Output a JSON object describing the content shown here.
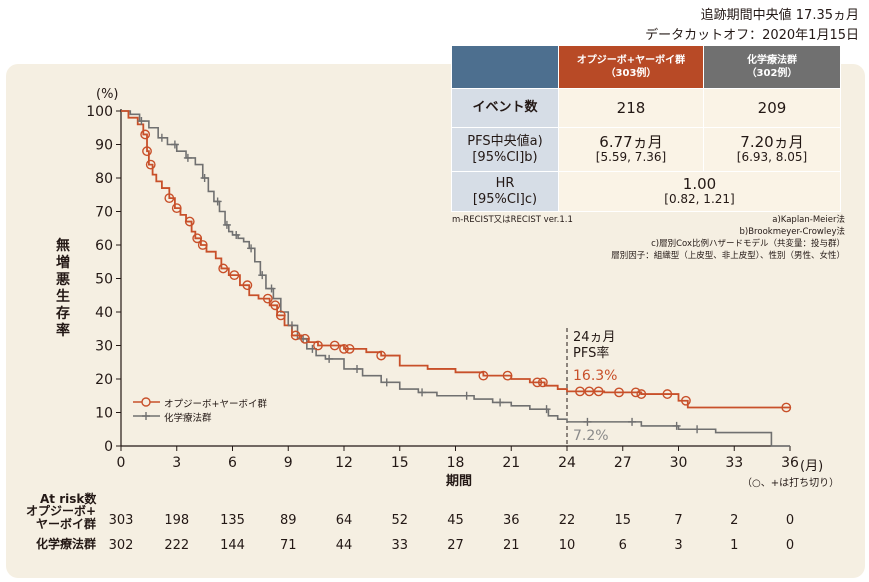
{
  "header": {
    "followup": "追跡期間中央値 17.35ヵ月",
    "cutoff": "データカットオフ：2020年1月15日"
  },
  "table": {
    "col_a": [
      "オプジーボ+ヤーボイ群",
      "（303例）"
    ],
    "col_b": [
      "化学療法群",
      "（302例）"
    ],
    "event_label": "イベント数",
    "event_a": "218",
    "event_b": "209",
    "pfs_label": [
      "PFS中央値a)",
      "[95%CI]b)"
    ],
    "pfs_a": "6.77ヵ月",
    "pfs_a_ci": "[5.59, 7.36]",
    "pfs_b": "7.20ヵ月",
    "pfs_b_ci": "[6.93, 8.05]",
    "hr_label": [
      "HR",
      "[95%CI]c)"
    ],
    "hr": "1.00",
    "hr_ci": "[0.82, 1.21]"
  },
  "footnotes": {
    "left": "m-RECIST又はRECIST ver.1.1",
    "a": "a)Kaplan-Meier法",
    "b": "b)Brookmeyer-Crowley法",
    "c": "c)層別Cox比例ハザードモデル（共変量：投与群）",
    "d": "層別因子：組織型（上皮型、非上皮型）、性別（男性、女性）"
  },
  "chart_data": {
    "type": "line",
    "ylabel": "無増悪生存率",
    "y_unit": "(%)",
    "xlabel": "期間",
    "x_unit": "(月)",
    "xlim": [
      0,
      36
    ],
    "ylim": [
      0,
      100
    ],
    "xticks": [
      0,
      3,
      6,
      9,
      12,
      15,
      18,
      21,
      24,
      27,
      30,
      33,
      36
    ],
    "yticks": [
      0,
      10,
      20,
      30,
      40,
      50,
      60,
      70,
      80,
      90,
      100
    ],
    "annotation": [
      "24ヵ月",
      "PFS率"
    ],
    "censor_note": "（○、+は打ち切り）",
    "series": [
      {
        "name": "オプジーボ+ヤーボイ群",
        "color": "#c8502a",
        "marker": "circle",
        "label_at_24": "16.3%",
        "x": [
          0,
          0.4,
          0.9,
          1.2,
          1.4,
          1.5,
          1.7,
          1.9,
          2.2,
          2.6,
          2.9,
          3.2,
          3.5,
          3.8,
          4.0,
          4.3,
          4.6,
          5.1,
          5.4,
          5.8,
          6.4,
          6.9,
          7.4,
          8.0,
          8.4,
          8.8,
          9.2,
          9.7,
          10.1,
          10.6,
          11.0,
          12.0,
          13.2,
          14.0,
          15.0,
          16.5,
          18.0,
          19.5,
          21.0,
          22.0,
          22.8,
          23.5,
          24.0,
          24.5,
          26.0,
          28.0,
          30.0,
          30.5,
          36.0
        ],
        "y": [
          100,
          98,
          96,
          93,
          88,
          84,
          81,
          79,
          77,
          74,
          71,
          69,
          67,
          64,
          62,
          60,
          58,
          56,
          53,
          51,
          48,
          45,
          44,
          42,
          39,
          36,
          33,
          32,
          31,
          30,
          30,
          29,
          28,
          27,
          24,
          23,
          22,
          21,
          20,
          19,
          18,
          17,
          16.3,
          16.3,
          16,
          15.5,
          13.5,
          11.5,
          11.5
        ]
      },
      {
        "name": "化学療法群",
        "color": "#707070",
        "marker": "plus",
        "label_at_24": "7.2%",
        "x": [
          0,
          0.5,
          1.0,
          1.5,
          2.0,
          2.5,
          3.0,
          3.5,
          4.0,
          4.4,
          4.7,
          5.0,
          5.3,
          5.6,
          5.8,
          6.0,
          6.3,
          6.6,
          6.9,
          7.2,
          7.5,
          7.8,
          8.2,
          8.6,
          9.0,
          9.5,
          10.0,
          10.5,
          11.0,
          12.0,
          13.0,
          14.0,
          15.0,
          16.0,
          17.0,
          18.0,
          19.0,
          20.0,
          21.0,
          22.0,
          23.0,
          23.5,
          24.0,
          26.0,
          28.0,
          30.0,
          32.0,
          33.0,
          35.0,
          36.0
        ],
        "y": [
          100,
          99,
          97,
          95,
          92,
          90,
          88,
          86,
          84,
          80,
          76,
          73,
          70,
          66,
          64,
          63,
          62,
          61,
          59,
          55,
          51,
          47,
          44,
          40,
          36,
          32,
          29,
          27,
          26,
          23,
          21,
          19,
          17,
          16,
          15,
          15,
          14,
          13,
          12,
          11,
          9,
          8,
          7.2,
          7.2,
          6,
          5,
          4,
          4,
          0,
          0
        ]
      }
    ],
    "censor_a": [
      1.3,
      1.4,
      1.6,
      2.6,
      3.0,
      3.7,
      4.1,
      4.4,
      5.5,
      6.1,
      6.8,
      7.9,
      8.3,
      8.6,
      9.4,
      9.9,
      10.6,
      11.5,
      12.0,
      12.3,
      14.0,
      19.5,
      20.8,
      22.4,
      22.7,
      24.7,
      25.2,
      25.7,
      26.8,
      27.7,
      28.0,
      29.4,
      30.4,
      35.8
    ],
    "censor_b": [
      1.1,
      2.2,
      2.9,
      3.6,
      4.5,
      5.2,
      5.7,
      6.2,
      7.0,
      7.6,
      8.1,
      9.2,
      9.8,
      10.3,
      11.2,
      12.7,
      14.3,
      16.2,
      18.6,
      20.4,
      22.9,
      25.1,
      27.5,
      29.9,
      31.0
    ],
    "at_risk": {
      "title": "At risk数",
      "groups": [
        {
          "name": [
            "オプジーボ+",
            "ヤーボイ群"
          ],
          "values": [
            303,
            198,
            135,
            89,
            64,
            52,
            45,
            36,
            22,
            15,
            7,
            2,
            0
          ]
        },
        {
          "name": [
            "化学療法群"
          ],
          "values": [
            302,
            222,
            144,
            71,
            44,
            33,
            27,
            21,
            10,
            6,
            3,
            1,
            0
          ]
        }
      ]
    }
  }
}
